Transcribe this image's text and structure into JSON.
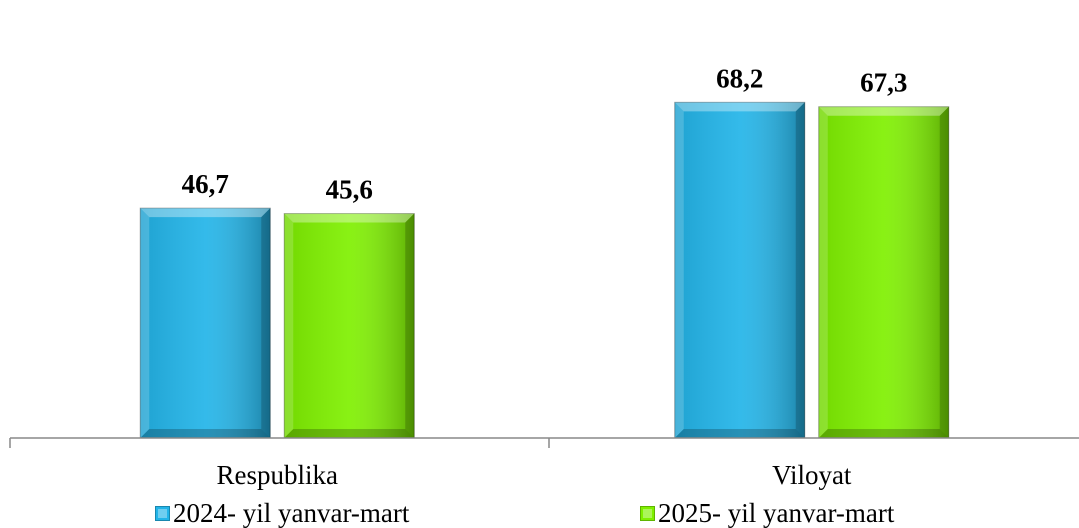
{
  "chart_data": {
    "type": "bar",
    "categories": [
      "Respublika",
      "Viloyat"
    ],
    "series": [
      {
        "name": "2024- yil yanvar-mart",
        "values": [
          46.7,
          68.2
        ],
        "labels": [
          "46,7",
          "68,2"
        ],
        "color": "#22B4E8"
      },
      {
        "name": "2025- yil yanvar-mart",
        "values": [
          45.6,
          67.3
        ],
        "labels": [
          "45,6",
          "67,3"
        ],
        "color": "#7FF000"
      }
    ],
    "ylim": [
      0,
      80
    ],
    "grid": false,
    "legend": "bottom",
    "title": "",
    "xlabel": "",
    "ylabel": ""
  }
}
